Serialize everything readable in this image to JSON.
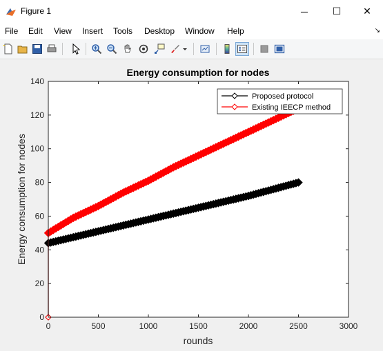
{
  "window": {
    "title": "Figure 1",
    "minimize_symbol": "─",
    "maximize_symbol": "☐",
    "close_symbol": "✕"
  },
  "menu": {
    "items": [
      "File",
      "Edit",
      "View",
      "Insert",
      "Tools",
      "Desktop",
      "Window",
      "Help"
    ],
    "overflow_symbol": "↘"
  },
  "toolbar": {
    "buttons": [
      "new-figure-icon",
      "open-file-icon",
      "save-icon",
      "print-icon",
      "edit-plot-arrow-icon",
      "zoom-in-icon",
      "zoom-out-icon",
      "pan-hand-icon",
      "rotate-3d-icon",
      "data-cursor-icon",
      "brush-icon",
      "link-plot-icon",
      "insert-colorbar-icon",
      "insert-legend-icon",
      "hide-plot-tools-icon",
      "show-plot-tools-icon"
    ]
  },
  "chart_data": {
    "type": "line",
    "title": "Energy consumption for nodes",
    "xlabel": "rounds",
    "ylabel": "Energy consumption for nodes",
    "xlim": [
      0,
      3000
    ],
    "ylim": [
      0,
      140
    ],
    "xticks": [
      0,
      500,
      1000,
      1500,
      2000,
      2500,
      3000
    ],
    "yticks": [
      0,
      20,
      40,
      60,
      80,
      100,
      120,
      140
    ],
    "legend_position": "top-right",
    "grid": false,
    "series": [
      {
        "name": "Proposed protocol",
        "color": "#000000",
        "marker": "diamond",
        "x": [
          0,
          0,
          500,
          1000,
          1500,
          2000,
          2500
        ],
        "y": [
          0,
          44,
          51,
          58,
          65,
          72,
          80
        ]
      },
      {
        "name": "Existing IEECP method",
        "color": "#ff0000",
        "marker": "diamond",
        "x": [
          0,
          0,
          250,
          500,
          750,
          1000,
          1250,
          1500,
          1750,
          2000,
          2250,
          2500
        ],
        "y": [
          0,
          50,
          59,
          66,
          74,
          81,
          89,
          96,
          103,
          110,
          117,
          124
        ]
      }
    ]
  }
}
